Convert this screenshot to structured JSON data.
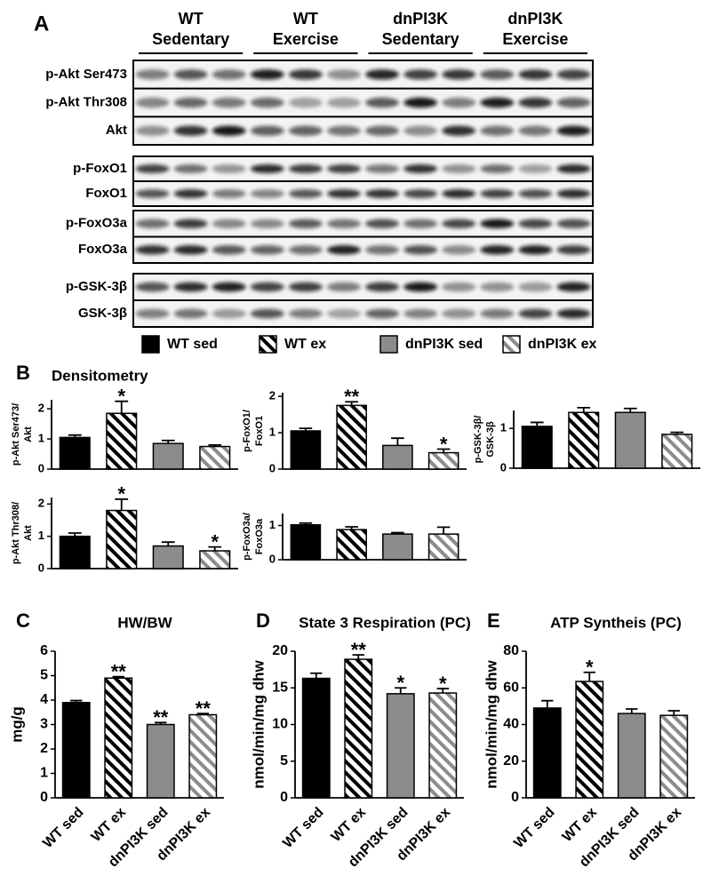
{
  "blot": {
    "panel_label": "A",
    "groups": [
      {
        "lines": [
          "WT",
          "Sedentary"
        ]
      },
      {
        "lines": [
          "WT",
          "Exercise"
        ]
      },
      {
        "lines": [
          "dnPI3K",
          "Sedentary"
        ]
      },
      {
        "lines": [
          "dnPI3K",
          "Exercise"
        ]
      }
    ],
    "rows": [
      [
        "p-Akt Ser473",
        "p-Akt Thr308",
        "Akt"
      ],
      [
        "p-FoxO1",
        "FoxO1"
      ],
      [
        "p-FoxO3a",
        "FoxO3a"
      ],
      [
        "p-GSK-3β",
        "GSK-3β"
      ]
    ]
  },
  "legend": [
    {
      "name": "WT sed",
      "color": "#000000",
      "hatched": false
    },
    {
      "name": "WT ex",
      "color": "#000000",
      "hatched": true
    },
    {
      "name": "dnPI3K sed",
      "color": "#8c8c8c",
      "hatched": false
    },
    {
      "name": "dnPI3K ex",
      "color": "#8c8c8c",
      "hatched": true
    }
  ],
  "panel_b": {
    "label": "B",
    "title": "Densitometry"
  },
  "chart_data": [
    {
      "type": "bar",
      "ylabel": [
        "p-Akt Ser473/",
        "Akt"
      ],
      "values": [
        1.05,
        1.85,
        0.85,
        0.75
      ],
      "errors": [
        0.08,
        0.4,
        0.1,
        0.05
      ],
      "colors": [
        "#000000",
        "#000000",
        "#8c8c8c",
        "#8c8c8c"
      ],
      "hatched": [
        false,
        true,
        false,
        true
      ],
      "stars": [
        {
          "index": 1,
          "text": "*"
        }
      ],
      "ylim": [
        0,
        2.3
      ],
      "yticks": [
        0,
        1,
        2
      ]
    },
    {
      "type": "bar",
      "ylabel": [
        "p-FoxO1/",
        "FoxO1"
      ],
      "values": [
        1.05,
        1.75,
        0.65,
        0.45
      ],
      "errors": [
        0.07,
        0.1,
        0.2,
        0.1
      ],
      "colors": [
        "#000000",
        "#000000",
        "#8c8c8c",
        "#8c8c8c"
      ],
      "hatched": [
        false,
        true,
        false,
        true
      ],
      "stars": [
        {
          "index": 1,
          "text": "**"
        },
        {
          "index": 3,
          "text": "*"
        }
      ],
      "ylim": [
        0,
        2.1
      ],
      "yticks": [
        0,
        1,
        2
      ]
    },
    {
      "type": "bar",
      "ylabel": [
        "p-GSK-3β/",
        "GSK-3β"
      ],
      "values": [
        1.05,
        1.4,
        1.4,
        0.85
      ],
      "errors": [
        0.1,
        0.12,
        0.1,
        0.05
      ],
      "colors": [
        "#000000",
        "#000000",
        "#8c8c8c",
        "#8c8c8c"
      ],
      "hatched": [
        false,
        true,
        false,
        true
      ],
      "stars": [],
      "ylim": [
        0,
        1.45
      ],
      "yticks": [
        0,
        1
      ]
    },
    {
      "type": "bar",
      "ylabel": [
        "p-Akt Thr308/",
        "Akt"
      ],
      "values": [
        1.0,
        1.8,
        0.7,
        0.55
      ],
      "errors": [
        0.1,
        0.35,
        0.12,
        0.12
      ],
      "colors": [
        "#000000",
        "#000000",
        "#8c8c8c",
        "#8c8c8c"
      ],
      "hatched": [
        false,
        true,
        false,
        true
      ],
      "stars": [
        {
          "index": 1,
          "text": "*"
        },
        {
          "index": 3,
          "text": "*"
        }
      ],
      "ylim": [
        0,
        2.2
      ],
      "yticks": [
        0,
        1,
        2
      ]
    },
    {
      "type": "bar",
      "ylabel": [
        "p-FoxO3a/",
        "FoxO3a"
      ],
      "values": [
        1.02,
        0.88,
        0.75,
        0.75
      ],
      "errors": [
        0.05,
        0.08,
        0.04,
        0.2
      ],
      "colors": [
        "#000000",
        "#000000",
        "#8c8c8c",
        "#8c8c8c"
      ],
      "hatched": [
        false,
        true,
        false,
        true
      ],
      "stars": [],
      "ylim": [
        0,
        1.35
      ],
      "yticks": [
        0,
        1
      ]
    },
    {
      "type": "bar",
      "panel_label": "C",
      "title": "HW/BW",
      "ylabel": "mg/g",
      "categories": [
        "WT sed",
        "WT ex",
        "dnPI3K sed",
        "dnPI3K ex"
      ],
      "values": [
        3.9,
        4.9,
        3.0,
        3.4
      ],
      "errors": [
        0.08,
        0.06,
        0.08,
        0.05
      ],
      "colors": [
        "#000000",
        "#000000",
        "#8c8c8c",
        "#8c8c8c"
      ],
      "hatched": [
        false,
        true,
        false,
        true
      ],
      "stars": [
        {
          "index": 1,
          "text": "**"
        },
        {
          "index": 2,
          "text": "**"
        },
        {
          "index": 3,
          "text": "**"
        }
      ],
      "ylim": [
        0,
        6
      ],
      "yticks": [
        0,
        1,
        2,
        3,
        4,
        5,
        6
      ]
    },
    {
      "type": "bar",
      "panel_label": "D",
      "title": "State 3 Respiration (PC)",
      "ylabel": "nmol/min/mg dhw",
      "categories": [
        "WT sed",
        "WT ex",
        "dnPI3K sed",
        "dnPI3K ex"
      ],
      "values": [
        16.3,
        18.9,
        14.2,
        14.3
      ],
      "errors": [
        0.7,
        0.6,
        0.8,
        0.6
      ],
      "colors": [
        "#000000",
        "#000000",
        "#8c8c8c",
        "#8c8c8c"
      ],
      "hatched": [
        false,
        true,
        false,
        true
      ],
      "stars": [
        {
          "index": 1,
          "text": "**"
        },
        {
          "index": 2,
          "text": "*"
        },
        {
          "index": 3,
          "text": "*"
        }
      ],
      "ylim": [
        0,
        20
      ],
      "yticks": [
        0,
        5,
        10,
        15,
        20
      ]
    },
    {
      "type": "bar",
      "panel_label": "E",
      "title": "ATP Syntheis (PC)",
      "ylabel": "nmol/min/mg dhw",
      "categories": [
        "WT sed",
        "WT ex",
        "dnPI3K sed",
        "dnPI3K ex"
      ],
      "values": [
        49,
        63.5,
        46,
        45
      ],
      "errors": [
        4,
        5,
        2.5,
        2.5
      ],
      "colors": [
        "#000000",
        "#000000",
        "#8c8c8c",
        "#8c8c8c"
      ],
      "hatched": [
        false,
        true,
        false,
        true
      ],
      "stars": [
        {
          "index": 1,
          "text": "*"
        }
      ],
      "ylim": [
        0,
        80
      ],
      "yticks": [
        0,
        20,
        40,
        60,
        80
      ]
    }
  ]
}
